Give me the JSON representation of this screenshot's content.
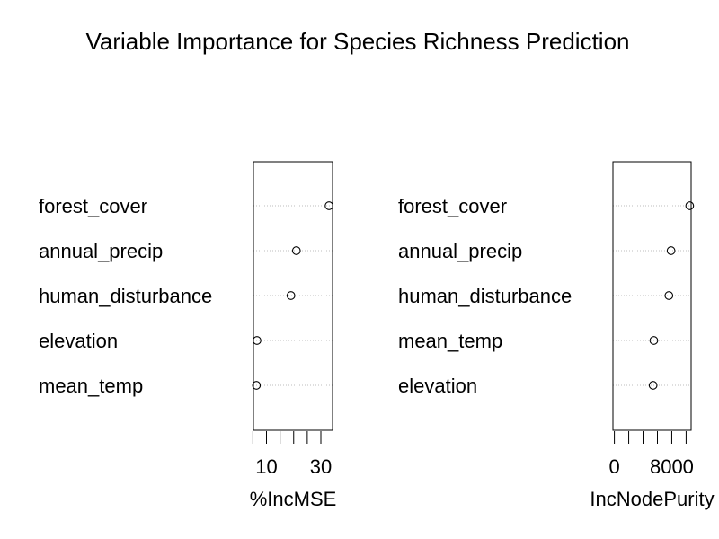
{
  "title": "Variable Importance for Species Richness Prediction",
  "chart_data": [
    {
      "type": "scatter",
      "style": "dotchart",
      "xlabel": "%IncMSE",
      "categories": [
        "forest_cover",
        "annual_precip",
        "human_disturbance",
        "elevation",
        "mean_temp"
      ],
      "values": [
        33,
        21,
        19,
        6.5,
        6.3
      ],
      "xlim": [
        5.2,
        34.3
      ],
      "minor_ticks": [
        5,
        10,
        15,
        20,
        25,
        30
      ],
      "tick_labels": [
        10,
        30
      ],
      "grid": "dotted"
    },
    {
      "type": "scatter",
      "style": "dotchart",
      "xlabel": "IncNodePurity",
      "categories": [
        "forest_cover",
        "annual_precip",
        "human_disturbance",
        "mean_temp",
        "elevation"
      ],
      "values": [
        10500,
        7900,
        7600,
        5500,
        5400
      ],
      "xlim": [
        -200,
        10700
      ],
      "minor_ticks": [
        0,
        2000,
        4000,
        6000,
        8000,
        10000
      ],
      "tick_labels": [
        0,
        8000
      ],
      "grid": "dotted"
    }
  ]
}
